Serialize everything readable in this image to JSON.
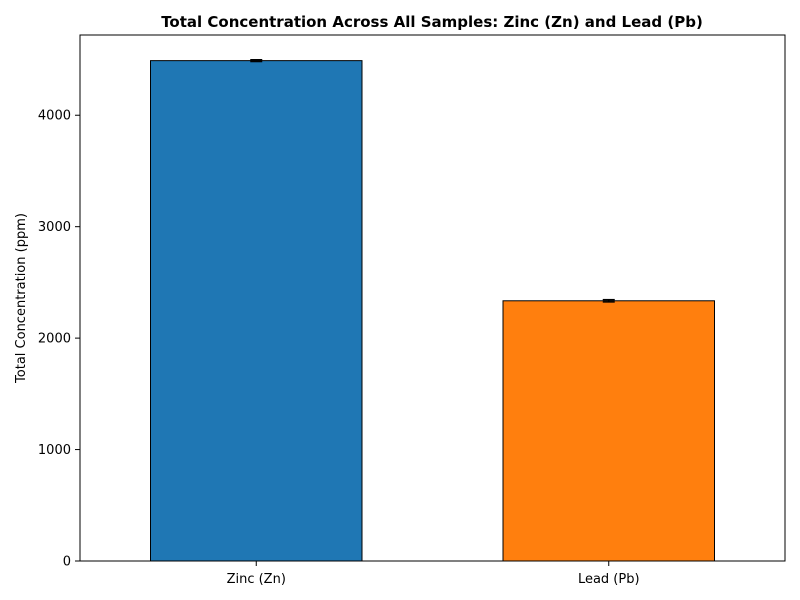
{
  "chart_data": {
    "type": "bar",
    "title": "Total Concentration Across All Samples: Zinc (Zn) and Lead (Pb)",
    "xlabel": "",
    "ylabel": "Total Concentration (ppm)",
    "categories": [
      "Zinc (Zn)",
      "Lead (Pb)"
    ],
    "values": [
      4490,
      2335
    ],
    "errors": [
      8,
      10
    ],
    "colors": [
      "#1f77b4",
      "#ff7f0e"
    ],
    "ylim": [
      0,
      4720
    ],
    "yticks": [
      0,
      1000,
      2000,
      3000,
      4000
    ],
    "grid": false
  }
}
